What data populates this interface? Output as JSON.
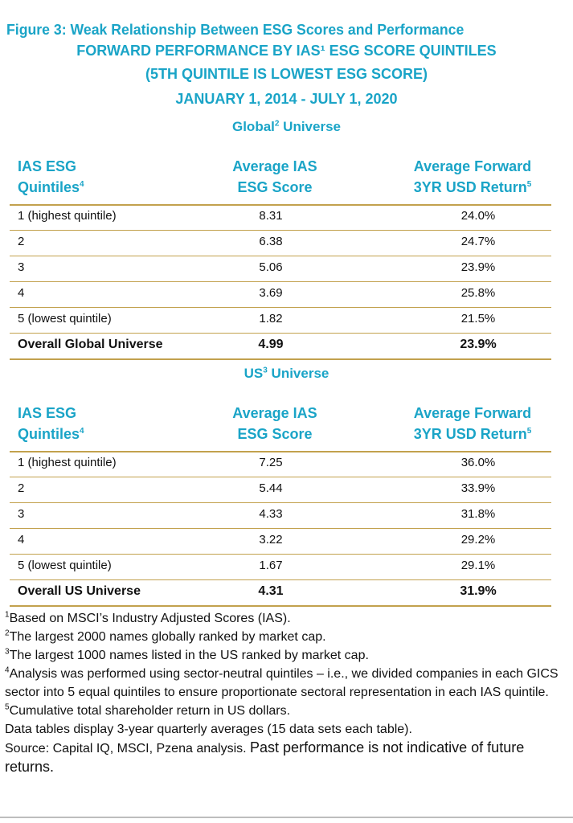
{
  "figure_title": "Figure 3:  Weak Relationship Between ESG Scores and Performance",
  "subtitle_lines": [
    "FORWARD PERFORMANCE BY IAS¹ ESG SCORE QUINTILES",
    "(5TH QUINTILE IS LOWEST ESG SCORE)",
    "JANUARY 1, 2014 - JULY 1, 2020"
  ],
  "colors": {
    "accent": "#1aa4c7",
    "rule": "#c2a14d",
    "text": "#111111"
  },
  "columns": {
    "quintile_line1": "IAS ESG",
    "quintile_line2": "Quintiles",
    "quintile_sup": "4",
    "score_line1": "Average IAS",
    "score_line2": "ESG Score",
    "return_line1": "Average Forward",
    "return_line2": "3YR USD Return",
    "return_sup": "5"
  },
  "chart_data": [
    {
      "type": "table",
      "title": "Global",
      "title_sup": "2",
      "title_suffix": " Universe",
      "rows": [
        {
          "quintile": "1 (highest quintile)",
          "score": "8.31",
          "return": "24.0%"
        },
        {
          "quintile": "2",
          "score": "6.38",
          "return": "24.7%"
        },
        {
          "quintile": "3",
          "score": "5.06",
          "return": "23.9%"
        },
        {
          "quintile": "4",
          "score": "3.69",
          "return": "25.8%"
        },
        {
          "quintile": "5 (lowest quintile)",
          "score": "1.82",
          "return": "21.5%"
        }
      ],
      "total": {
        "quintile": "Overall Global Universe",
        "score": "4.99",
        "return": "23.9%"
      }
    },
    {
      "type": "table",
      "title": "US",
      "title_sup": "3",
      "title_suffix": " Universe",
      "rows": [
        {
          "quintile": "1 (highest quintile)",
          "score": "7.25",
          "return": "36.0%"
        },
        {
          "quintile": "2",
          "score": "5.44",
          "return": "33.9%"
        },
        {
          "quintile": "3",
          "score": "4.33",
          "return": "31.8%"
        },
        {
          "quintile": "4",
          "score": "3.22",
          "return": "29.2%"
        },
        {
          "quintile": "5 (lowest quintile)",
          "score": "1.67",
          "return": "29.1%"
        }
      ],
      "total": {
        "quintile": "Overall US Universe",
        "score": "4.31",
        "return": "31.9%"
      }
    }
  ],
  "footnotes": [
    {
      "sup": "1",
      "text": "Based on MSCI’s Industry Adjusted Scores (IAS)."
    },
    {
      "sup": "2",
      "text": "The largest 2000 names globally ranked by market cap."
    },
    {
      "sup": "3",
      "text": "The largest 1000 names listed in the US ranked by market cap."
    },
    {
      "sup": "4",
      "text": "Analysis was performed using sector-neutral quintiles – i.e., we divided companies in each GICS sector into 5 equal quintiles to ensure proportionate sectoral representation in each IAS quintile."
    },
    {
      "sup": "5",
      "text": "Cumulative total shareholder return in US dollars."
    }
  ],
  "data_note": "Data tables display 3-year quarterly averages (15 data sets each table).",
  "source": "Source: Capital IQ, MSCI, Pzena analysis.",
  "disclaimer": "Past performance is not indicative of future returns."
}
